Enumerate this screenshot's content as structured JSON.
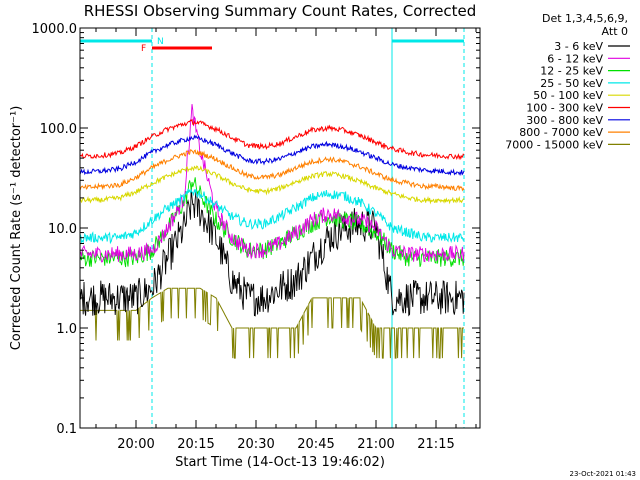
{
  "chart_data": {
    "type": "line",
    "title": "RHESSI Observing Summary Count Rates, Corrected",
    "xlabel": "Start Time (14-Oct-13 19:46:02)",
    "ylabel": "Corrected Count Rate (s⁻¹ detector⁻¹)",
    "yscale": "log",
    "ylim": [
      0.1,
      1000.0
    ],
    "y_ticks": [
      "0.1",
      "1.0",
      "10.0",
      "100.0",
      "1000.0"
    ],
    "x_range_minutes": [
      0,
      100
    ],
    "x_ticks": [
      "20:00",
      "20:15",
      "20:30",
      "20:45",
      "21:00",
      "21:15"
    ],
    "x_tick_minutes": [
      14,
      29,
      44,
      59,
      74,
      89
    ],
    "detectors": "Det 1,3,4,5,6,9,",
    "attenuator": "Att 0",
    "night_flag_label": "N",
    "flare_flag_label": "F",
    "night_intervals_minutes": [
      [
        0,
        18
      ],
      [
        78,
        96
      ]
    ],
    "flare_interval_minutes": [
      18,
      33
    ],
    "footer": "23-Oct-2021 01:43",
    "series": [
      {
        "name": "3 - 6 keV",
        "color": "#000000"
      },
      {
        "name": "6 - 12 keV",
        "color": "#e000e0"
      },
      {
        "name": "12 - 25 keV",
        "color": "#00e000"
      },
      {
        "name": "25 - 50 keV",
        "color": "#00e8e8"
      },
      {
        "name": "50 - 100 keV",
        "color": "#d8d800"
      },
      {
        "name": "100 - 300 keV",
        "color": "#ff0000"
      },
      {
        "name": "300 - 800 keV",
        "color": "#0000e0"
      },
      {
        "name": "800 - 7000 keV",
        "color": "#ff8000"
      },
      {
        "name": "7000 - 15000 keV",
        "color": "#808000"
      }
    ],
    "profiles": {
      "time_minutes": [
        0,
        5,
        10,
        14,
        18,
        22,
        26,
        28,
        30,
        34,
        38,
        42,
        46,
        50,
        54,
        58,
        62,
        66,
        70,
        74,
        78,
        82,
        86,
        90,
        94,
        96
      ],
      "3 - 6 keV": [
        2.0,
        2.0,
        2.0,
        2.0,
        2.5,
        5,
        10,
        18,
        15,
        8,
        3,
        2,
        2,
        2.5,
        3,
        5,
        8,
        10,
        11,
        10,
        2,
        2,
        2,
        2,
        2,
        2
      ],
      "6 - 12 keV": [
        5.5,
        5.5,
        5.5,
        5.5,
        6,
        10,
        20,
        150,
        60,
        15,
        8,
        6,
        6,
        7,
        9,
        12,
        14,
        13,
        12,
        10,
        6,
        5.5,
        5.5,
        5.5,
        5.5,
        5.5
      ],
      "12 - 25 keV": [
        5,
        5,
        5,
        5,
        6,
        10,
        18,
        30,
        22,
        12,
        8,
        6,
        6,
        7,
        9,
        11,
        13,
        12,
        11,
        9,
        6,
        5,
        5,
        5,
        5,
        5
      ],
      "25 - 50 keV": [
        8,
        8,
        8,
        9,
        12,
        16,
        20,
        24,
        22,
        17,
        13,
        11,
        11,
        13,
        16,
        20,
        22,
        21,
        18,
        14,
        10,
        9,
        8,
        8,
        8,
        8
      ],
      "50 - 100 keV": [
        19,
        19,
        20,
        23,
        28,
        33,
        38,
        40,
        39,
        34,
        28,
        24,
        23,
        25,
        29,
        33,
        35,
        33,
        29,
        25,
        22,
        20,
        19,
        19,
        19,
        19
      ],
      "100 - 300 keV": [
        52,
        53,
        56,
        66,
        82,
        98,
        110,
        115,
        112,
        98,
        80,
        67,
        65,
        70,
        82,
        95,
        100,
        95,
        84,
        72,
        62,
        57,
        54,
        53,
        52,
        52
      ],
      "300 - 800 keV": [
        36,
        37,
        39,
        46,
        57,
        68,
        76,
        80,
        78,
        68,
        56,
        47,
        46,
        49,
        57,
        65,
        69,
        65,
        58,
        50,
        43,
        40,
        38,
        37,
        36,
        36
      ],
      "800 - 7000 keV": [
        25,
        26,
        27,
        32,
        40,
        48,
        55,
        58,
        56,
        49,
        40,
        33,
        32,
        34,
        40,
        46,
        49,
        46,
        41,
        35,
        30,
        28,
        26,
        26,
        25,
        25
      ],
      "7000 - 15000 keV": [
        1.5,
        1.5,
        1.5,
        1.5,
        2.0,
        2.5,
        2.5,
        2.5,
        2.5,
        2.0,
        1.0,
        1.0,
        1.0,
        1.0,
        1.0,
        2.0,
        2.0,
        2.0,
        2.0,
        1.0,
        1.0,
        1.0,
        1.0,
        1.0,
        1.0,
        1.0
      ]
    }
  }
}
